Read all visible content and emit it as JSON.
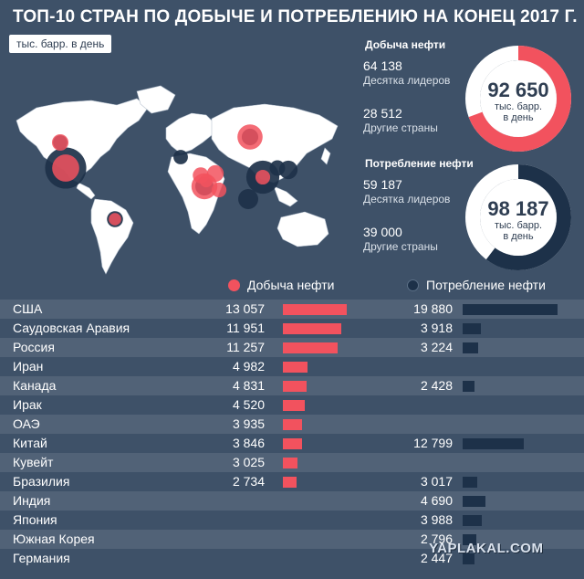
{
  "title": "ТОП-10 СТРАН ПО ДОБЫЧЕ И ПОТРЕБЛЕНИЮ НА КОНЕЦ 2017 Г.",
  "unit_badge": "тыс. барр. в день",
  "colors": {
    "background": "#3e5168",
    "production": "#f2525e",
    "consumption": "#1d3149",
    "land": "#ffffff",
    "ring_rest": "#ffffff"
  },
  "donuts": {
    "production": {
      "heading": "Добыча нефти",
      "leaders_value": "64 138",
      "leaders_label": "Десятка лидеров",
      "others_value": "28 512",
      "others_label": "Другие страны",
      "total": "92 650",
      "unit_line1": "тыс. барр.",
      "unit_line2": "в день",
      "leaders_share": 0.6923
    },
    "consumption": {
      "heading": "Потребление нефти",
      "leaders_value": "59 187",
      "leaders_label": "Десятка лидеров",
      "others_value": "39 000",
      "others_label": "Другие страны",
      "total": "98 187",
      "unit_line1": "тыс. барр.",
      "unit_line2": "в день",
      "leaders_share": 0.6028
    }
  },
  "legend": {
    "production": "Добыча нефти",
    "consumption": "Потребление нефти"
  },
  "chart_data": {
    "type": "bar",
    "categories": [
      "США",
      "Саудовская Аравия",
      "Россия",
      "Иран",
      "Канада",
      "Ирак",
      "ОАЭ",
      "Китай",
      "Кувейт",
      "Бразилия",
      "Индия",
      "Япония",
      "Южная Корея",
      "Германия"
    ],
    "series": [
      {
        "name": "Добыча нефти",
        "values": [
          13057,
          11951,
          11257,
          4982,
          4831,
          4520,
          3935,
          3846,
          3025,
          2734,
          null,
          null,
          null,
          null
        ],
        "labels": [
          "13 057",
          "11 951",
          "11 257",
          "4 982",
          "4 831",
          "4 520",
          "3 935",
          "3 846",
          "3 025",
          "2 734",
          "",
          "",
          "",
          ""
        ]
      },
      {
        "name": "Потребление нефти",
        "values": [
          19880,
          3918,
          3224,
          null,
          2428,
          null,
          null,
          12799,
          null,
          3017,
          4690,
          3988,
          2796,
          2447
        ],
        "labels": [
          "19 880",
          "3 918",
          "3 224",
          "",
          "2 428",
          "",
          "",
          "12 799",
          "",
          "3 017",
          "4 690",
          "3 988",
          "2 796",
          "2 447"
        ]
      }
    ],
    "unit": "тыс. барр. в день"
  },
  "map_bubbles": [
    {
      "name": "США",
      "production": 13057,
      "consumption": 19880
    },
    {
      "name": "Канада",
      "production": 4831,
      "consumption": 2428
    },
    {
      "name": "Бразилия",
      "production": 2734,
      "consumption": 3017
    },
    {
      "name": "Россия",
      "production": 11257,
      "consumption": 3224
    },
    {
      "name": "Саудовская Аравия",
      "production": 11951,
      "consumption": 3918
    },
    {
      "name": "Иран",
      "production": 4982,
      "consumption": null
    },
    {
      "name": "Ирак",
      "production": 4520,
      "consumption": null
    },
    {
      "name": "ОАЭ",
      "production": 3935,
      "consumption": null
    },
    {
      "name": "Кувейт",
      "production": 3025,
      "consumption": null
    },
    {
      "name": "Китай",
      "production": 3846,
      "consumption": 12799
    },
    {
      "name": "Индия",
      "production": null,
      "consumption": 4690
    },
    {
      "name": "Япония",
      "production": null,
      "consumption": 3988
    },
    {
      "name": "Южная Корея",
      "production": null,
      "consumption": 2796
    },
    {
      "name": "Германия",
      "production": null,
      "consumption": 2447
    }
  ],
  "watermark": "YAPLAKAL.COM"
}
